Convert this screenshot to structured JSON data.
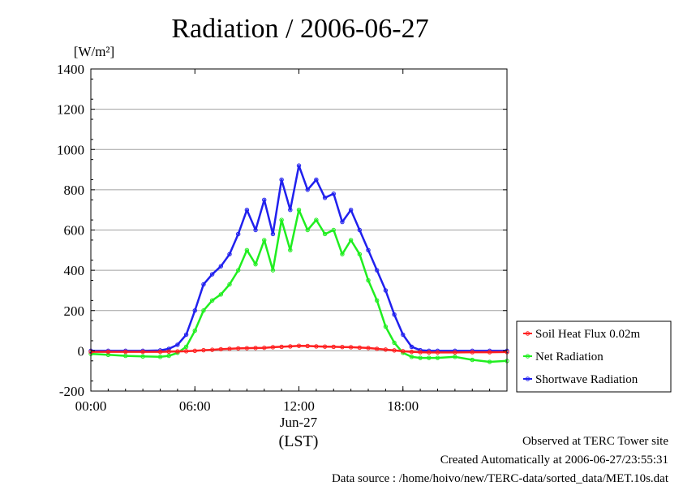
{
  "chart_data": {
    "type": "line",
    "title": "Radiation / 2006-06-27",
    "ylabel": "[W/m²]",
    "xlabel": "(LST)",
    "date_label": "Jun-27",
    "ylim": [
      -200,
      1400
    ],
    "xlim": [
      "00:00",
      "24:00"
    ],
    "y_ticks": [
      "-200",
      "0",
      "200",
      "400",
      "600",
      "800",
      "1000",
      "1200",
      "1400"
    ],
    "x_ticks": [
      "00:00",
      "06:00",
      "12:00",
      "18:00"
    ],
    "grid": true,
    "legend_position": "right",
    "x_hours": [
      0,
      1,
      2,
      3,
      4,
      4.5,
      5,
      5.5,
      6,
      6.5,
      7,
      7.5,
      8,
      8.5,
      9,
      9.5,
      10,
      10.5,
      11,
      11.5,
      12,
      12.5,
      13,
      13.5,
      14,
      14.5,
      15,
      15.5,
      16,
      16.5,
      17,
      17.5,
      18,
      18.5,
      19,
      19.5,
      20,
      21,
      22,
      23,
      24
    ],
    "series": [
      {
        "name": "Soil Heat Flux 0.02m",
        "color": "#ff2020",
        "values": [
          -5,
          -5,
          -5,
          -5,
          -5,
          -4,
          -3,
          -2,
          0,
          3,
          5,
          8,
          10,
          12,
          13,
          14,
          15,
          18,
          20,
          22,
          25,
          24,
          22,
          21,
          20,
          19,
          18,
          16,
          14,
          10,
          6,
          2,
          -2,
          -5,
          -7,
          -8,
          -8,
          -8,
          -7,
          -7,
          -6
        ]
      },
      {
        "name": "Net Radiation",
        "color": "#20ee20",
        "values": [
          -15,
          -20,
          -25,
          -28,
          -30,
          -25,
          -10,
          20,
          100,
          200,
          250,
          280,
          330,
          400,
          500,
          430,
          550,
          400,
          650,
          500,
          700,
          600,
          650,
          580,
          600,
          480,
          550,
          480,
          350,
          250,
          120,
          40,
          -10,
          -30,
          -35,
          -35,
          -35,
          -30,
          -45,
          -55,
          -50
        ]
      },
      {
        "name": "Shortwave Radiation",
        "color": "#2020ee",
        "values": [
          0,
          0,
          0,
          0,
          2,
          10,
          30,
          80,
          200,
          330,
          380,
          420,
          480,
          580,
          700,
          600,
          750,
          580,
          850,
          700,
          920,
          800,
          850,
          760,
          780,
          640,
          700,
          600,
          500,
          400,
          300,
          180,
          80,
          20,
          3,
          0,
          0,
          0,
          0,
          0,
          0
        ]
      }
    ]
  },
  "footer": {
    "line1": "Observed at TERC Tower site",
    "line2": "Created Automatically at 2006-06-27/23:55:31",
    "line3": "Data source : /home/hoivo/new/TERC-data/sorted_data/MET.10s.dat"
  }
}
